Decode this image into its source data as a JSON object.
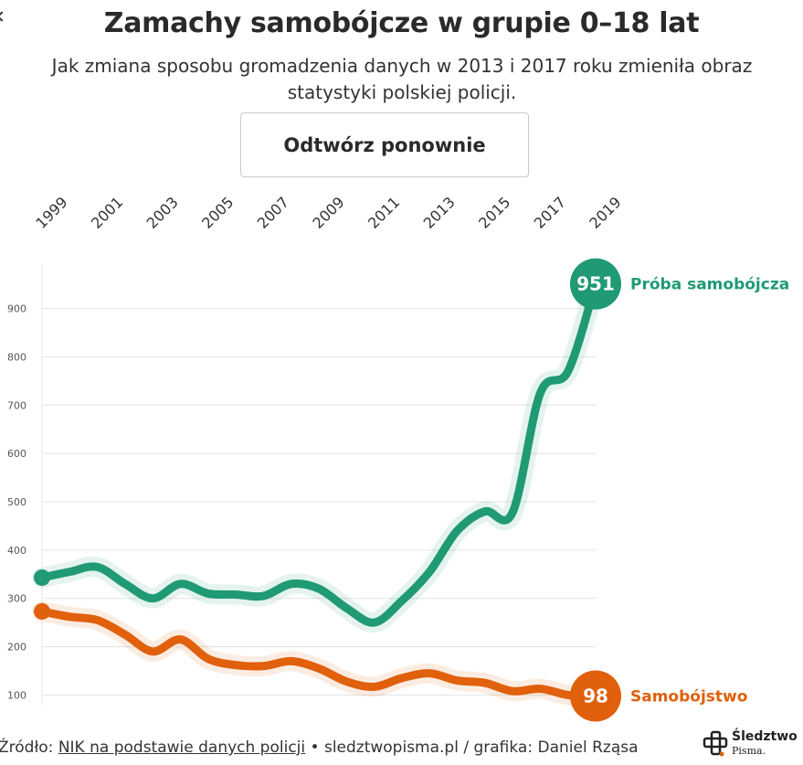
{
  "header": {
    "title": "Zamachy samobójcze w grupie 0–18 lat",
    "subtitle": "Jak zmiana sposobu gromadzenia danych w 2013 i 2017 roku zmieniła obraz statystyki polskiej policji."
  },
  "controls": {
    "replay_label": "Odtwórz ponownie"
  },
  "footer": {
    "source_prefix": "Źródło: ",
    "source_link": "NIK na podstawie danych policji",
    "rest": " • sledztwopisma.pl / grafika: Daniel Rząsa"
  },
  "logo": {
    "name": "Śledztwo",
    "sub": "Pisma."
  },
  "chart_data": {
    "type": "line",
    "x": [
      1999,
      2000,
      2001,
      2002,
      2003,
      2004,
      2005,
      2006,
      2007,
      2008,
      2009,
      2010,
      2011,
      2012,
      2013,
      2014,
      2015,
      2016,
      2017,
      2018,
      2019
    ],
    "x_tick_labels": [
      "1999",
      "2001",
      "2003",
      "2005",
      "2007",
      "2009",
      "2011",
      "2013",
      "2015",
      "2017",
      "2019"
    ],
    "ylim": [
      80,
      990
    ],
    "y_ticks": [
      100,
      200,
      300,
      400,
      500,
      600,
      700,
      800,
      900
    ],
    "grid": true,
    "series": [
      {
        "name": "Próba samobójcza",
        "color": "#1f9a74",
        "end_label": "951",
        "values": [
          343,
          355,
          365,
          330,
          300,
          330,
          310,
          308,
          305,
          330,
          320,
          280,
          250,
          295,
          355,
          440,
          480,
          478,
          725,
          770,
          951
        ]
      },
      {
        "name": "Samobójstwo",
        "color": "#e0600c",
        "end_label": "98",
        "values": [
          273,
          262,
          255,
          225,
          190,
          215,
          175,
          162,
          160,
          170,
          155,
          128,
          117,
          135,
          145,
          130,
          125,
          108,
          113,
          100,
          98
        ]
      }
    ]
  }
}
